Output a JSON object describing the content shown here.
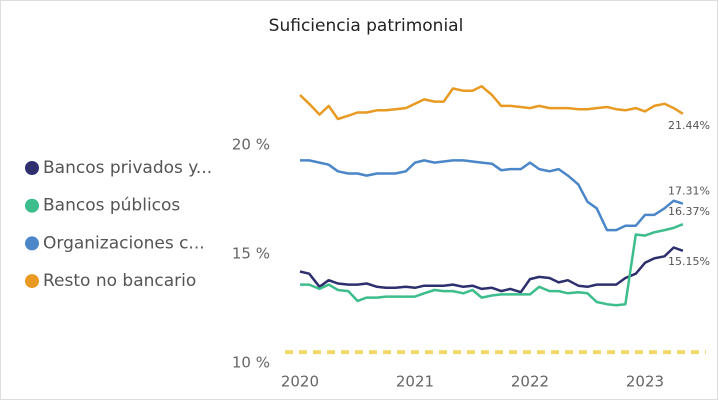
{
  "chart_data": {
    "type": "line",
    "title": "Suficiencia patrimonial",
    "x": [
      2020,
      2020.08,
      2020.17,
      2020.25,
      2020.33,
      2020.42,
      2020.5,
      2020.58,
      2020.67,
      2020.75,
      2020.83,
      2020.92,
      2021,
      2021.08,
      2021.17,
      2021.25,
      2021.33,
      2021.42,
      2021.5,
      2021.58,
      2021.67,
      2021.75,
      2021.83,
      2021.92,
      2022,
      2022.08,
      2022.17,
      2022.25,
      2022.33,
      2022.42,
      2022.5,
      2022.58,
      2022.67,
      2022.75,
      2022.83,
      2022.92,
      2023,
      2023.08,
      2023.17,
      2023.25,
      2023.33
    ],
    "xlim": [
      2019.87,
      2023.6
    ],
    "xticks": [
      2020,
      2021,
      2022,
      2023
    ],
    "ylim": [
      10,
      24
    ],
    "yticks": [
      {
        "value": 10,
        "label": "10 %"
      },
      {
        "value": 15,
        "label": "15 %"
      },
      {
        "value": 20,
        "label": "20 %"
      }
    ],
    "reference_line": {
      "value": 10.5,
      "color": "#f3d96b"
    },
    "series": [
      {
        "name": "Bancos privados y...",
        "color": "#2e2f6e",
        "values": [
          14.2,
          14.1,
          13.5,
          13.8,
          13.65,
          13.6,
          13.6,
          13.65,
          13.5,
          13.45,
          13.45,
          13.5,
          13.45,
          13.55,
          13.55,
          13.55,
          13.6,
          13.5,
          13.55,
          13.4,
          13.45,
          13.3,
          13.4,
          13.25,
          13.85,
          13.95,
          13.9,
          13.7,
          13.8,
          13.55,
          13.5,
          13.6,
          13.6,
          13.6,
          13.9,
          14.1,
          14.6,
          14.8,
          14.9,
          15.3,
          15.15
        ],
        "value_labels": [
          null,
          null,
          null,
          null,
          null,
          null,
          null,
          null,
          null,
          null,
          null,
          null,
          null,
          null,
          null,
          null,
          null,
          null,
          null,
          null,
          null,
          null,
          null,
          null,
          null,
          null,
          null,
          null,
          null,
          null,
          null,
          null,
          null,
          null,
          null,
          null,
          null,
          null,
          null,
          null,
          "15.15%"
        ]
      },
      {
        "name": "Bancos públicos",
        "color": "#3dbd8c",
        "values": [
          13.6,
          13.6,
          13.4,
          13.6,
          13.35,
          13.3,
          12.85,
          13.0,
          13.0,
          13.05,
          13.05,
          13.05,
          13.05,
          13.2,
          13.35,
          13.3,
          13.3,
          13.2,
          13.35,
          13.0,
          13.1,
          13.15,
          13.15,
          13.15,
          13.15,
          13.5,
          13.3,
          13.3,
          13.2,
          13.25,
          13.2,
          12.8,
          12.7,
          12.65,
          12.7,
          15.9,
          15.85,
          16.0,
          16.1,
          16.2,
          16.37
        ],
        "value_labels": [
          null,
          null,
          null,
          null,
          null,
          null,
          null,
          null,
          null,
          null,
          null,
          null,
          null,
          null,
          null,
          null,
          null,
          null,
          null,
          null,
          null,
          null,
          null,
          null,
          null,
          null,
          null,
          null,
          null,
          null,
          null,
          null,
          null,
          null,
          null,
          null,
          null,
          null,
          null,
          null,
          "16.37%"
        ]
      },
      {
        "name": "Organizaciones c...",
        "color": "#4a86c8",
        "values": [
          19.3,
          19.3,
          19.2,
          19.1,
          18.8,
          18.7,
          18.7,
          18.6,
          18.7,
          18.7,
          18.7,
          18.8,
          19.2,
          19.3,
          19.2,
          19.25,
          19.3,
          19.3,
          19.25,
          19.2,
          19.15,
          18.85,
          18.9,
          18.9,
          19.2,
          18.9,
          18.8,
          18.9,
          18.6,
          18.2,
          17.4,
          17.1,
          16.1,
          16.1,
          16.3,
          16.3,
          16.8,
          16.8,
          17.1,
          17.45,
          17.31
        ],
        "value_labels": [
          null,
          null,
          null,
          null,
          null,
          null,
          null,
          null,
          null,
          null,
          null,
          null,
          null,
          null,
          null,
          null,
          null,
          null,
          null,
          null,
          null,
          null,
          null,
          null,
          null,
          null,
          null,
          null,
          null,
          null,
          null,
          null,
          null,
          null,
          null,
          null,
          null,
          null,
          null,
          null,
          "17.31%"
        ]
      },
      {
        "name": "Resto no bancario",
        "color": "#e89a23",
        "values": [
          22.3,
          21.9,
          21.4,
          21.8,
          21.2,
          21.35,
          21.5,
          21.5,
          21.6,
          21.6,
          21.65,
          21.7,
          21.9,
          22.1,
          22.0,
          22.0,
          22.6,
          22.5,
          22.5,
          22.7,
          22.3,
          21.8,
          21.8,
          21.75,
          21.7,
          21.8,
          21.7,
          21.7,
          21.7,
          21.65,
          21.65,
          21.7,
          21.75,
          21.65,
          21.6,
          21.7,
          21.55,
          21.8,
          21.9,
          21.7,
          21.44
        ],
        "value_labels": [
          null,
          null,
          null,
          null,
          null,
          null,
          null,
          null,
          null,
          null,
          null,
          null,
          null,
          null,
          null,
          null,
          null,
          null,
          null,
          null,
          null,
          null,
          null,
          null,
          null,
          null,
          null,
          null,
          null,
          null,
          null,
          null,
          null,
          null,
          null,
          null,
          null,
          null,
          null,
          null,
          "21.44%"
        ]
      }
    ]
  }
}
